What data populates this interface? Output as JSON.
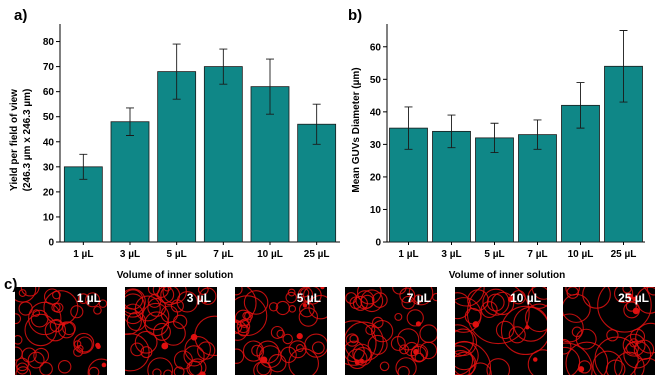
{
  "chart_data": [
    {
      "panel": "a)",
      "type": "bar",
      "categories": [
        "1 µL",
        "3 µL",
        "5 µL",
        "7 µL",
        "10 µL",
        "25 µL"
      ],
      "values": [
        30,
        48,
        68,
        70,
        62,
        47
      ],
      "errors": [
        5,
        5.5,
        11,
        7,
        11,
        8
      ],
      "xlabel": "Volume of inner solution",
      "ylabel": [
        "Yield per field of view",
        "(246.3 µm x 246.3 µm)"
      ],
      "ylim": [
        0,
        87
      ],
      "yticks": [
        0,
        10,
        20,
        30,
        40,
        50,
        60,
        70,
        80
      ],
      "colors": {
        "bar": "#0f8787"
      }
    },
    {
      "panel": "b)",
      "type": "bar",
      "categories": [
        "1 µL",
        "3 µL",
        "5 µL",
        "7 µL",
        "10 µL",
        "25 µL"
      ],
      "values": [
        35,
        34,
        32,
        33,
        42,
        54
      ],
      "errors": [
        6.5,
        5,
        4.5,
        4.5,
        7,
        11
      ],
      "xlabel": "Volume of inner solution",
      "ylabel": [
        "Mean GUVs Diameter (µm)"
      ],
      "ylim": [
        0,
        67
      ],
      "yticks": [
        0,
        10,
        20,
        30,
        40,
        50,
        60
      ],
      "colors": {
        "bar": "#0f8787"
      }
    }
  ],
  "micrographs": {
    "panel": "c)",
    "labels": [
      "1 µL",
      "3 µL",
      "5 µL",
      "7 µL",
      "10 µL",
      "25 µL"
    ],
    "colors": {
      "background": "#000000",
      "vesicle": "#e01010"
    }
  }
}
